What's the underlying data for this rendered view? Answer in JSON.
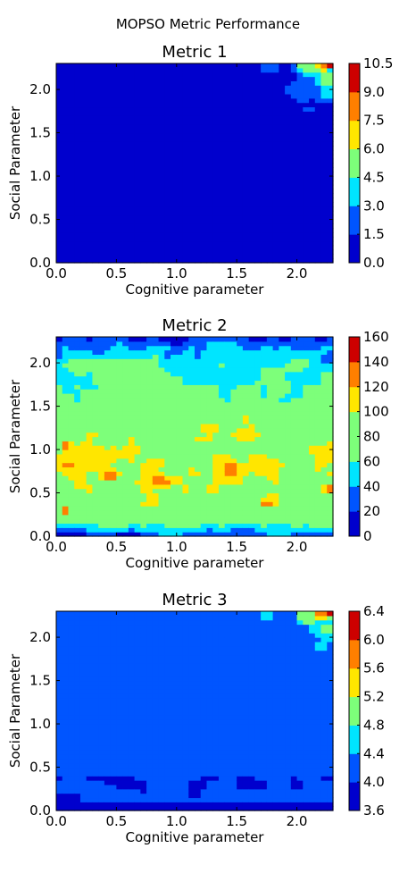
{
  "figure_title": "MOPSO Metric Performance",
  "colormap": [
    "#0000cd",
    "#0055ff",
    "#00e5ff",
    "#7dff7a",
    "#ffe600",
    "#ff7f00",
    "#cd0000"
  ],
  "chart_data": [
    {
      "type": "heatmap",
      "title": "Metric 1",
      "xlabel": "Cognitive parameter",
      "ylabel": "Social Parameter",
      "xlim": [
        0.0,
        2.3
      ],
      "ylim": [
        0.0,
        2.3
      ],
      "x_ticks": [
        "0.0",
        "0.5",
        "1.0",
        "1.5",
        "2.0"
      ],
      "y_ticks": [
        "0.0",
        "0.5",
        "1.0",
        "1.5",
        "2.0"
      ],
      "colorbar_ticks": [
        "0.0",
        "1.5",
        "3.0",
        "4.5",
        "6.0",
        "7.5",
        "9.0",
        "10.5"
      ],
      "colorbar_range": [
        0.0,
        10.5
      ],
      "dominant_value": 0.75,
      "features": [
        {
          "x": 2.27,
          "y": 2.27,
          "value": 10.0,
          "radius": 0.06
        },
        {
          "x": 2.22,
          "y": 2.27,
          "value": 8.2,
          "radius": 0.1
        },
        {
          "x": 2.1,
          "y": 2.26,
          "value": 5.5,
          "radius": 0.16
        },
        {
          "x": 2.28,
          "y": 2.12,
          "value": 5.0,
          "radius": 0.18
        },
        {
          "x": 2.25,
          "y": 1.95,
          "value": 3.6,
          "radius": 0.14
        },
        {
          "x": 2.05,
          "y": 2.0,
          "value": 2.2,
          "radius": 0.2
        },
        {
          "x": 1.78,
          "y": 2.25,
          "value": 2.0,
          "radius": 0.12
        },
        {
          "x": 2.1,
          "y": 1.78,
          "value": 2.0,
          "radius": 0.08
        }
      ]
    },
    {
      "type": "heatmap",
      "title": "Metric 2",
      "xlabel": "Cognitive parameter",
      "ylabel": "Social Parameter",
      "xlim": [
        0.0,
        2.3
      ],
      "ylim": [
        0.0,
        2.3
      ],
      "x_ticks": [
        "0.0",
        "0.5",
        "1.0",
        "1.5",
        "2.0"
      ],
      "y_ticks": [
        "0.0",
        "0.5",
        "1.0",
        "1.5",
        "2.0"
      ],
      "colorbar_ticks": [
        "0",
        "20",
        "40",
        "60",
        "80",
        "100",
        "120",
        "140",
        "160"
      ],
      "colorbar_range": [
        0,
        160
      ],
      "features": [
        {
          "x": 0.85,
          "y": 0.65,
          "value": 135,
          "radius": 0.1
        },
        {
          "x": 1.45,
          "y": 0.78,
          "value": 130,
          "radius": 0.1
        },
        {
          "x": 2.28,
          "y": 0.55,
          "value": 130,
          "radius": 0.08
        },
        {
          "x": 0.08,
          "y": 0.3,
          "value": 125,
          "radius": 0.06
        },
        {
          "x": 1.75,
          "y": 0.38,
          "value": 125,
          "radius": 0.06
        },
        {
          "x": 1.3,
          "y": 0.55,
          "value": 128,
          "radius": 0.06
        },
        {
          "x": 0.08,
          "y": 1.05,
          "value": 128,
          "radius": 0.06
        },
        {
          "x": 0.45,
          "y": 0.7,
          "value": 120,
          "radius": 0.1
        },
        {
          "x": 0.2,
          "y": 0.88,
          "value": 115,
          "radius": 0.08
        }
      ]
    },
    {
      "type": "heatmap",
      "title": "Metric 3",
      "xlabel": "Cognitive parameter",
      "ylabel": "Social Parameter",
      "xlim": [
        0.0,
        2.3
      ],
      "ylim": [
        0.0,
        2.3
      ],
      "x_ticks": [
        "0.0",
        "0.5",
        "1.0",
        "1.5",
        "2.0"
      ],
      "y_ticks": [
        "0.0",
        "0.5",
        "1.0",
        "1.5",
        "2.0"
      ],
      "colorbar_ticks": [
        "3.6",
        "4.0",
        "4.4",
        "4.8",
        "5.2",
        "5.6",
        "6.0",
        "6.4"
      ],
      "colorbar_range": [
        3.6,
        6.4
      ],
      "dominant_value": 4.2,
      "features": [
        {
          "x": 2.27,
          "y": 2.27,
          "value": 6.2,
          "radius": 0.06
        },
        {
          "x": 2.2,
          "y": 2.27,
          "value": 5.8,
          "radius": 0.1
        },
        {
          "x": 2.1,
          "y": 2.25,
          "value": 5.0,
          "radius": 0.15
        },
        {
          "x": 2.25,
          "y": 2.1,
          "value": 4.9,
          "radius": 0.16
        },
        {
          "x": 2.2,
          "y": 1.9,
          "value": 4.5,
          "radius": 0.1
        },
        {
          "x": 1.75,
          "y": 2.25,
          "value": 4.5,
          "radius": 0.1
        }
      ],
      "low_region_value": 3.8,
      "low_region_max_y": 0.42
    }
  ]
}
